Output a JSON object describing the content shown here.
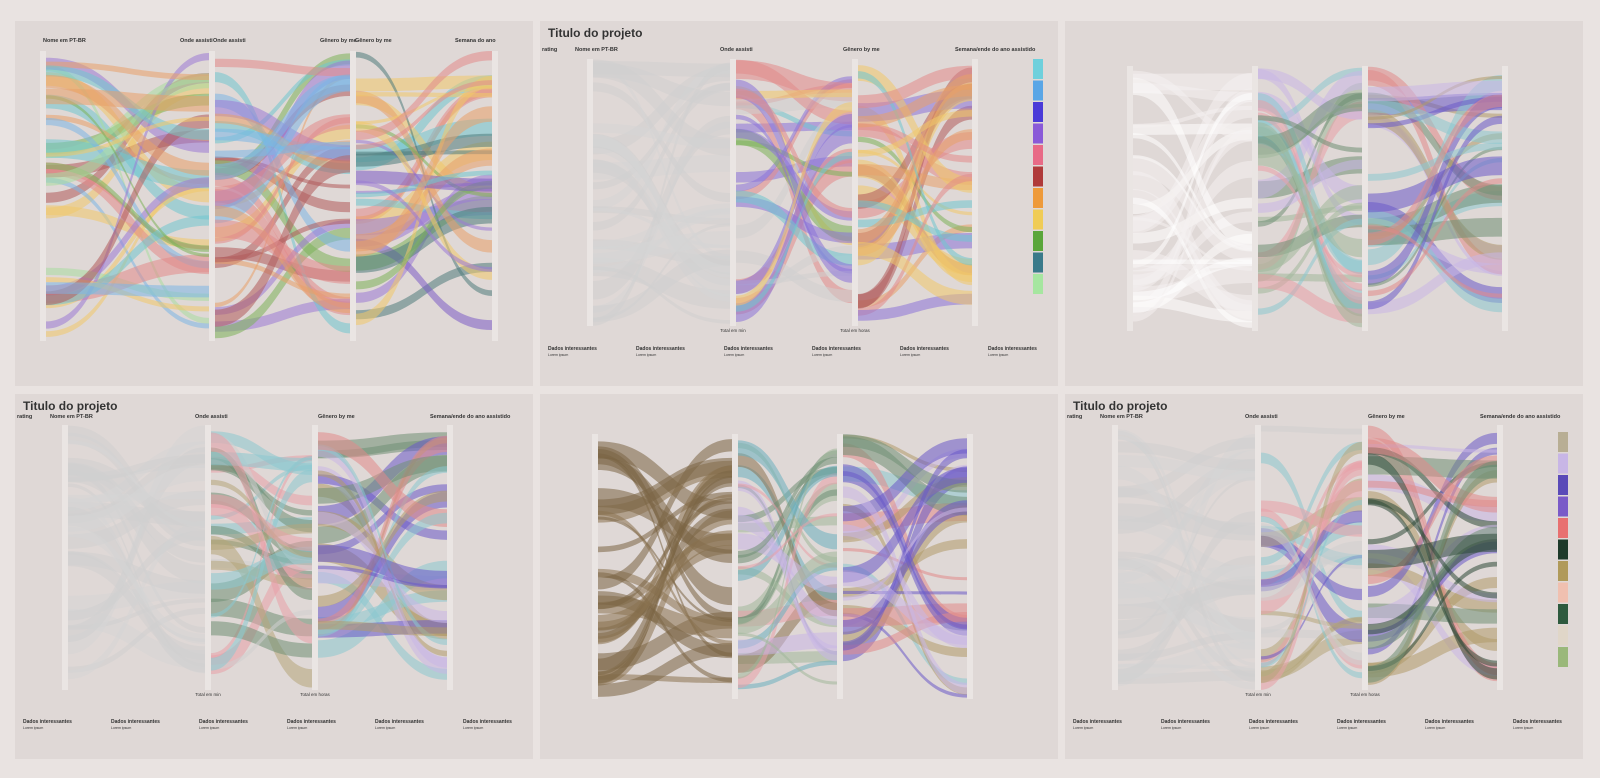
{
  "panels": [
    {
      "axis_labels": [
        "Nome em PT-BR",
        "Onde assisti",
        "Onde assisti",
        "Gênero by me",
        "Gênero by me",
        "Semana do ano"
      ]
    },
    {
      "title": "Titulo do projeto",
      "axis_labels": [
        "rating",
        "Nome em PT-BR",
        "Onde assisti",
        "Gênero by me",
        "Semana/ende do ano assistido"
      ],
      "totals": [
        "Total em min",
        "Total em horas"
      ],
      "footer": [
        {
          "heading": "Dados interessantes",
          "text": "Lorem ipsum"
        },
        {
          "heading": "Dados interessantes",
          "text": "Lorem ipsum"
        },
        {
          "heading": "Dados interessantes",
          "text": "Lorem ipsum"
        },
        {
          "heading": "Dados interessantes",
          "text": "Lorem ipsum"
        },
        {
          "heading": "Dados interessantes",
          "text": "Lorem ipsum"
        },
        {
          "heading": "Dados interessantes",
          "text": "Lorem ipsum"
        }
      ]
    },
    {},
    {
      "title": "Titulo do projeto",
      "axis_labels": [
        "rating",
        "Nome em PT-BR",
        "Onde assisti",
        "Gênero by me",
        "Semana/ende do ano assistido"
      ],
      "totals": [
        "Total em min",
        "Total em horas"
      ],
      "footer": [
        {
          "heading": "Dados interessantes",
          "text": "Lorem ipsum"
        },
        {
          "heading": "Dados interessantes",
          "text": "Lorem ipsum"
        },
        {
          "heading": "Dados interessantes",
          "text": "Lorem ipsum"
        },
        {
          "heading": "Dados interessantes",
          "text": "Lorem ipsum"
        },
        {
          "heading": "Dados interessantes",
          "text": "Lorem ipsum"
        },
        {
          "heading": "Dados interessantes",
          "text": "Lorem ipsum"
        }
      ]
    },
    {},
    {
      "title": "Titulo do projeto",
      "axis_labels": [
        "rating",
        "Nome em PT-BR",
        "Onde assisti",
        "Gênero by me",
        "Semana/ende do ano assistido"
      ],
      "totals": [
        "Total em min",
        "Total em horas"
      ],
      "footer": [
        {
          "heading": "Dados interessantes",
          "text": "Lorem ipsum"
        },
        {
          "heading": "Dados interessantes",
          "text": "Lorem ipsum"
        },
        {
          "heading": "Dados interessantes",
          "text": "Lorem ipsum"
        },
        {
          "heading": "Dados interessantes",
          "text": "Lorem ipsum"
        },
        {
          "heading": "Dados interessantes",
          "text": "Lorem ipsum"
        },
        {
          "heading": "Dados interessantes",
          "text": "Lorem ipsum"
        }
      ]
    }
  ]
}
